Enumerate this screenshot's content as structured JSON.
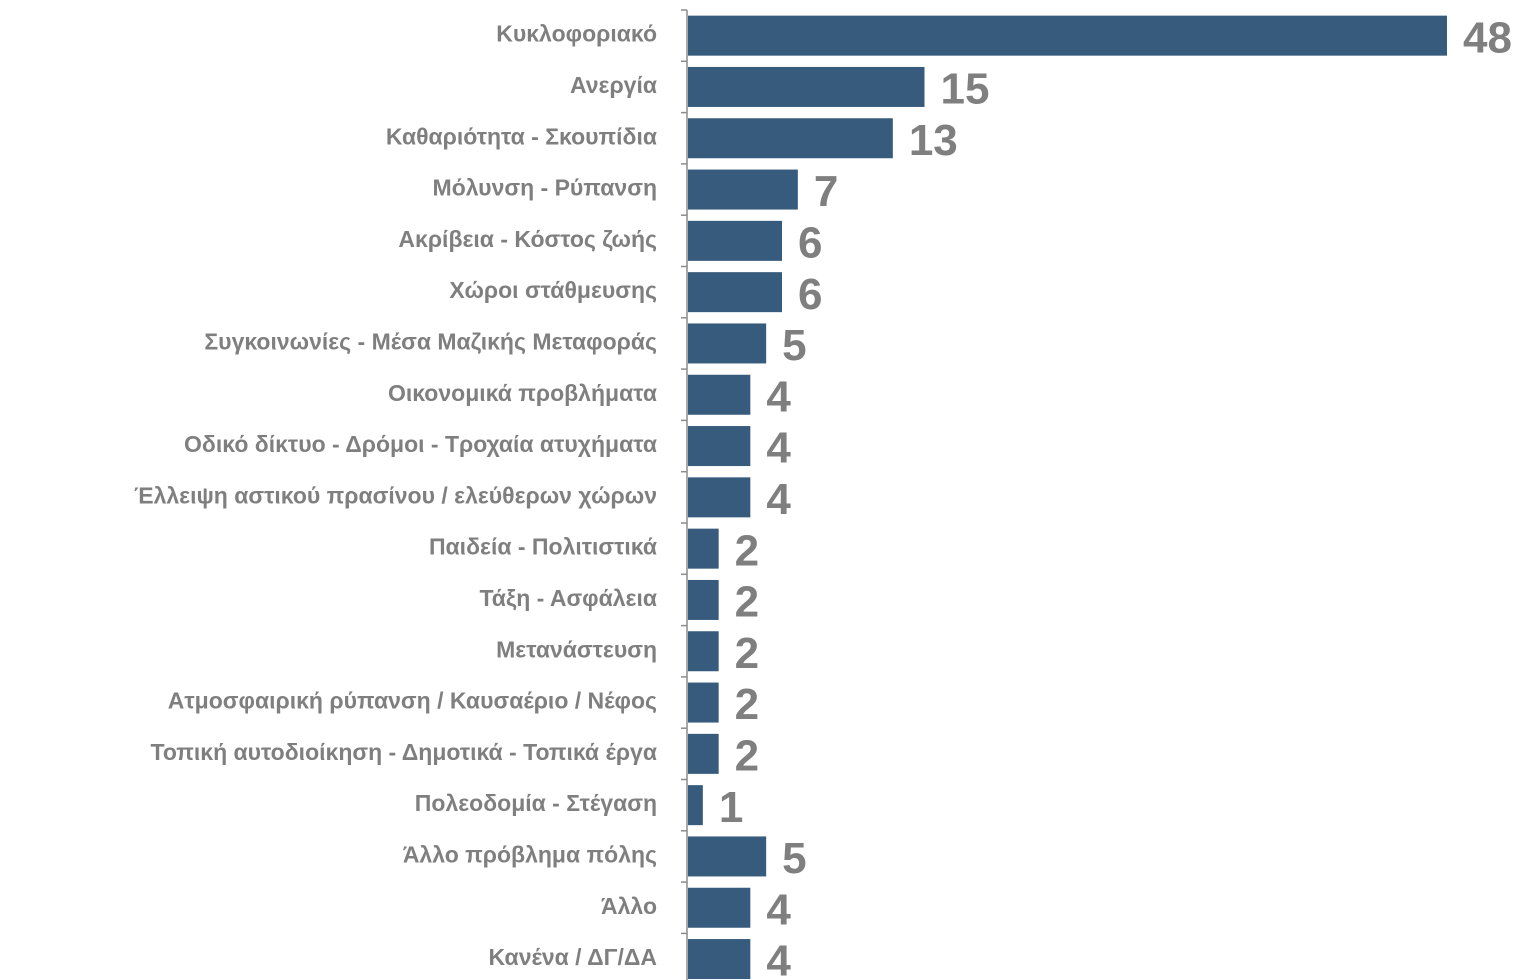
{
  "chart_data": {
    "type": "bar",
    "orientation": "horizontal",
    "categories": [
      "Κυκλοφοριακό",
      "Ανεργία",
      "Καθαριότητα - Σκουπίδια",
      "Μόλυνση - Ρύπανση",
      "Ακρίβεια - Κόστος ζωής",
      "Χώροι στάθμευσης",
      "Συγκοινωνίες - Μέσα Μαζικής Μεταφοράς",
      "Οικονομικά προβλήματα",
      "Οδικό δίκτυο - Δρόμοι - Τροχαία ατυχήματα",
      "Έλλειψη αστικού πρασίνου / ελεύθερων χώρων",
      "Παιδεία - Πολιτιστικά",
      "Τάξη - Ασφάλεια",
      "Μετανάστευση",
      "Ατμοσφαιρική ρύπανση / Καυσαέριο / Νέφος",
      "Τοπική αυτοδιοίκηση - Δημοτικά - Τοπικά έργα",
      "Πολεοδομία - Στέγαση",
      "Άλλο πρόβλημα πόλης",
      "Άλλο",
      "Κανένα / ΔΓ/ΔΑ"
    ],
    "values": [
      48,
      15,
      13,
      7,
      6,
      6,
      5,
      4,
      4,
      4,
      2,
      2,
      2,
      2,
      2,
      1,
      5,
      4,
      4
    ],
    "color": "#375b7d"
  }
}
